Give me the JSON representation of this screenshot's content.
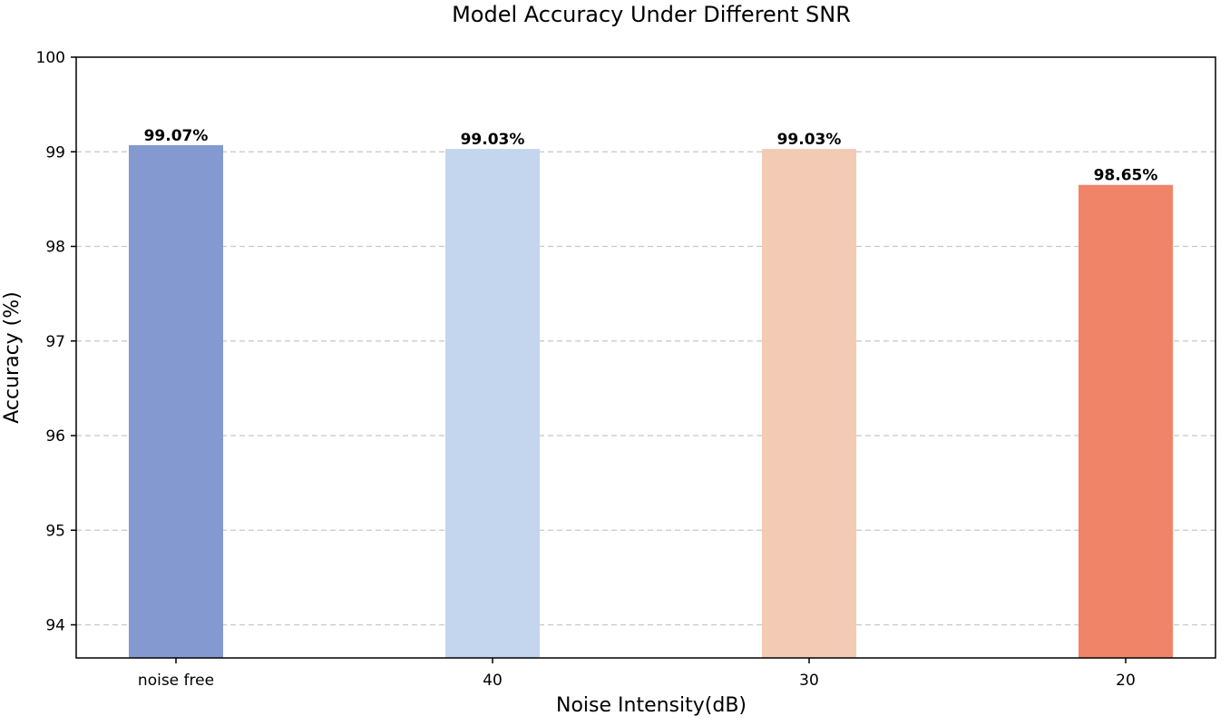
{
  "chart_data": {
    "type": "bar",
    "title": "Model Accuracy Under Different SNR",
    "xlabel": "Noise Intensity(dB)",
    "ylabel": "Accuracy (%)",
    "categories": [
      "noise free",
      "40",
      "30",
      "20"
    ],
    "values": [
      99.07,
      99.03,
      99.03,
      98.65
    ],
    "value_labels": [
      "99.07%",
      "99.03%",
      "99.03%",
      "98.65%"
    ],
    "bar_colors": [
      "#8399d0",
      "#c4d5ee",
      "#f3cbb5",
      "#ef8469"
    ],
    "ylim": [
      93.65,
      100
    ],
    "yticks": [
      94,
      95,
      96,
      97,
      98,
      99,
      100
    ],
    "ytick_labels": [
      "94",
      "95",
      "96",
      "97",
      "98",
      "99",
      "100"
    ],
    "grid": "horizontal dashed",
    "legend": "none"
  }
}
